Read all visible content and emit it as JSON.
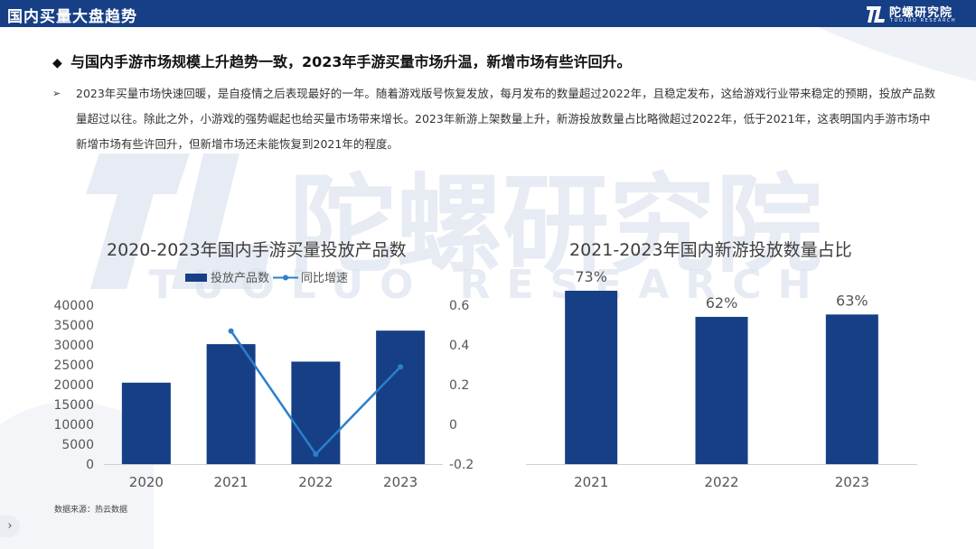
{
  "header": {
    "title": "国内买量大盘趋势",
    "brand_name": "陀螺研究院",
    "brand_sub": "TUOLUO RESEARCH"
  },
  "headline": {
    "marker": "◆",
    "text": "与国内手游市场规模上升趋势一致，2023年手游买量市场升温，新增市场有些许回升。"
  },
  "body": {
    "marker": "➢",
    "paragraph": "2023年买量市场快速回暖，是自疫情之后表现最好的一年。随着游戏版号恢复发放，每月发布的数量超过2022年，且稳定发布，这给游戏行业带来稳定的预期，投放产品数量超过以往。除此之外，小游戏的强势崛起也给买量市场带来增长。2023年新游上架数量上升，新游投放数量占比略微超过2022年，低于2021年，这表明国内手游市场中新增市场有些许回升，但新增市场还未能恢复到2021年的程度。"
  },
  "source": "数据来源：热云数据",
  "colors": {
    "header": "#163f86",
    "bar": "#163f86",
    "line": "#2b7fcb"
  },
  "chart_data": [
    {
      "type": "bar",
      "title": "2020-2023年国内手游买量投放产品数",
      "categories": [
        "2020",
        "2021",
        "2022",
        "2023"
      ],
      "series": [
        {
          "name": "投放产品数",
          "type": "bar",
          "axis": "left",
          "values": [
            20500,
            30200,
            25800,
            33600
          ]
        },
        {
          "name": "同比增速",
          "type": "line",
          "axis": "right",
          "values": [
            null,
            0.47,
            -0.15,
            0.29
          ]
        }
      ],
      "y_left": {
        "ylim": [
          0,
          40000
        ],
        "ticks": [
          0,
          5000,
          10000,
          15000,
          20000,
          25000,
          30000,
          35000,
          40000
        ]
      },
      "y_right": {
        "ylim": [
          -0.2,
          0.6
        ],
        "ticks": [
          "-0.2",
          "0",
          "0.2",
          "0.4",
          "0.6"
        ]
      },
      "legend": "top",
      "grid": false
    },
    {
      "type": "bar",
      "title": "2021-2023年国内新游投放数量占比",
      "categories": [
        "2021",
        "2022",
        "2023"
      ],
      "values": [
        73,
        62,
        63
      ],
      "data_labels": [
        "73%",
        "62%",
        "63%"
      ],
      "ylim": [
        0,
        80
      ],
      "grid": false
    }
  ]
}
